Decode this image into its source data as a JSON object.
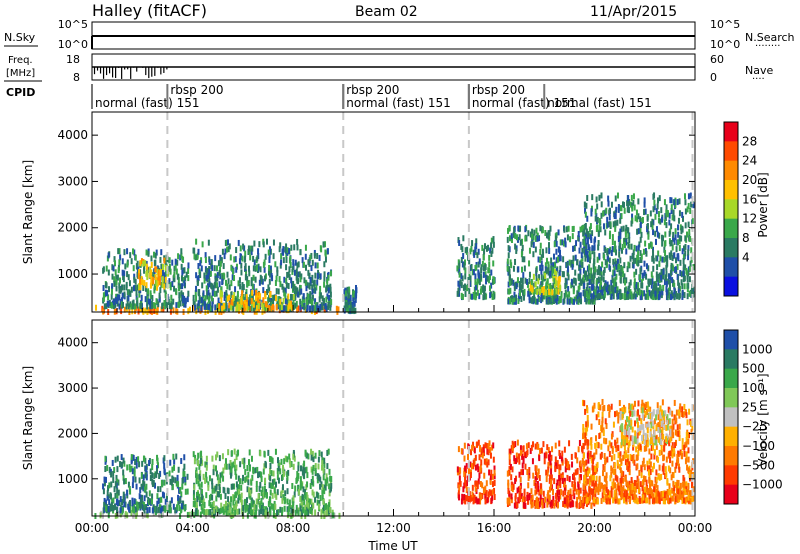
{
  "header": {
    "station": "Halley (fitACF)",
    "beam": "Beam 02",
    "date": "11/Apr/2015"
  },
  "top_panels": {
    "nsky_label": "N.Sky",
    "nsearch_label": "N.Search",
    "nsearch_key": "········",
    "nsky_ticks": [
      "10^5",
      "10^0"
    ],
    "nsearch_ticks": [
      "10^5",
      "10^0"
    ],
    "freq_label_line1": "Freq.",
    "freq_label_line2": "[MHz]",
    "freq_ticks": [
      "18",
      "8"
    ],
    "nave_label": "Nave",
    "nave_key": "····",
    "nave_ticks": [
      "60",
      "0"
    ],
    "cpid_label": "CPID",
    "cpid_segments": [
      {
        "start_h": 0.0,
        "end_h": 3.0,
        "label": "normal (fast)",
        "code": "151"
      },
      {
        "start_h": 3.0,
        "end_h": 10.0,
        "label": "rbsp",
        "code": "200"
      },
      {
        "start_h": 10.0,
        "end_h": 15.0,
        "label": "rbsp",
        "code": "200"
      },
      {
        "start_h": 10.0,
        "end_h": 15.0,
        "label": "normal (fast)",
        "code": "151"
      },
      {
        "start_h": 15.0,
        "end_h": 23.9,
        "label": "rbsp",
        "code": "200"
      },
      {
        "start_h": 15.0,
        "end_h": 23.9,
        "label": "normal (fast)",
        "code": "151"
      },
      {
        "start_h": 18.0,
        "end_h": 23.9,
        "label": "normal (fast)",
        "code": "151"
      }
    ]
  },
  "chart_data": [
    {
      "type": "heatmap",
      "title": "Power",
      "ylabel": "Slant Range [km]",
      "xlim": [
        0,
        24
      ],
      "ylim": [
        180,
        4500
      ],
      "yticks": [
        1000,
        2000,
        3000,
        4000
      ],
      "colorbar": {
        "label": "Power [dB]",
        "ticks": [
          "28",
          "24",
          "20",
          "16",
          "12",
          "8",
          "4"
        ],
        "colors": [
          "#e8001a",
          "#ff4a00",
          "#ff8a00",
          "#ffc000",
          "#a8d828",
          "#3aa84a",
          "#2a7a62",
          "#1f4fa8",
          "#0a10e0"
        ]
      },
      "blobs": [
        {
          "t0": 0.0,
          "t1": 9.9,
          "r0": 180,
          "r1": 300,
          "v": 24
        },
        {
          "t0": 0.4,
          "t1": 3.8,
          "r0": 300,
          "r1": 1500,
          "v": 10
        },
        {
          "t0": 1.8,
          "t1": 3.0,
          "r0": 700,
          "r1": 1300,
          "v": 20
        },
        {
          "t0": 4.0,
          "t1": 9.5,
          "r0": 250,
          "r1": 1700,
          "v": 9
        },
        {
          "t0": 5.0,
          "t1": 8.0,
          "r0": 250,
          "r1": 600,
          "v": 20
        },
        {
          "t0": 10.0,
          "t1": 10.5,
          "r0": 200,
          "r1": 700,
          "v": 9
        },
        {
          "t0": 14.5,
          "t1": 16.0,
          "r0": 500,
          "r1": 1800,
          "v": 8
        },
        {
          "t0": 16.5,
          "t1": 20.0,
          "r0": 400,
          "r1": 2000,
          "v": 8
        },
        {
          "t0": 17.4,
          "t1": 18.6,
          "r0": 600,
          "r1": 1100,
          "v": 18
        },
        {
          "t0": 19.5,
          "t1": 23.9,
          "r0": 500,
          "r1": 2700,
          "v": 7
        }
      ]
    },
    {
      "type": "heatmap",
      "title": "Velocity",
      "ylabel": "Slant Range [km]",
      "xlabel": "Time UT",
      "xlim": [
        0,
        24
      ],
      "ylim": [
        180,
        4500
      ],
      "xticks": [
        "00:00",
        "04:00",
        "08:00",
        "12:00",
        "16:00",
        "20:00",
        "00:00"
      ],
      "yticks": [
        1000,
        2000,
        3000,
        4000
      ],
      "colorbar": {
        "label": "Velocity [m s⁻¹]",
        "ticks": [
          "1000",
          "500",
          "100",
          "25",
          "−25",
          "−100",
          "−500",
          "−1000"
        ],
        "colors": [
          "#1f4fa8",
          "#2a7a62",
          "#3aa84a",
          "#80c858",
          "#c0c0c0",
          "#ffb000",
          "#ff7a00",
          "#ff3a00",
          "#e8001a"
        ]
      },
      "blobs": [
        {
          "t0": 0.0,
          "t1": 9.9,
          "r0": 180,
          "r1": 280,
          "v": 50
        },
        {
          "t0": 0.4,
          "t1": 3.8,
          "r0": 300,
          "r1": 1500,
          "v": 600
        },
        {
          "t0": 4.0,
          "t1": 9.5,
          "r0": 250,
          "r1": 1600,
          "v": 300
        },
        {
          "t0": 14.5,
          "t1": 16.0,
          "r0": 500,
          "r1": 1800,
          "v": -300
        },
        {
          "t0": 16.5,
          "t1": 20.0,
          "r0": 400,
          "r1": 1800,
          "v": -400
        },
        {
          "t0": 19.5,
          "t1": 23.9,
          "r0": 500,
          "r1": 2700,
          "v": -200
        },
        {
          "t0": 21.0,
          "t1": 23.0,
          "r0": 1800,
          "r1": 2600,
          "v": 0
        }
      ]
    }
  ]
}
